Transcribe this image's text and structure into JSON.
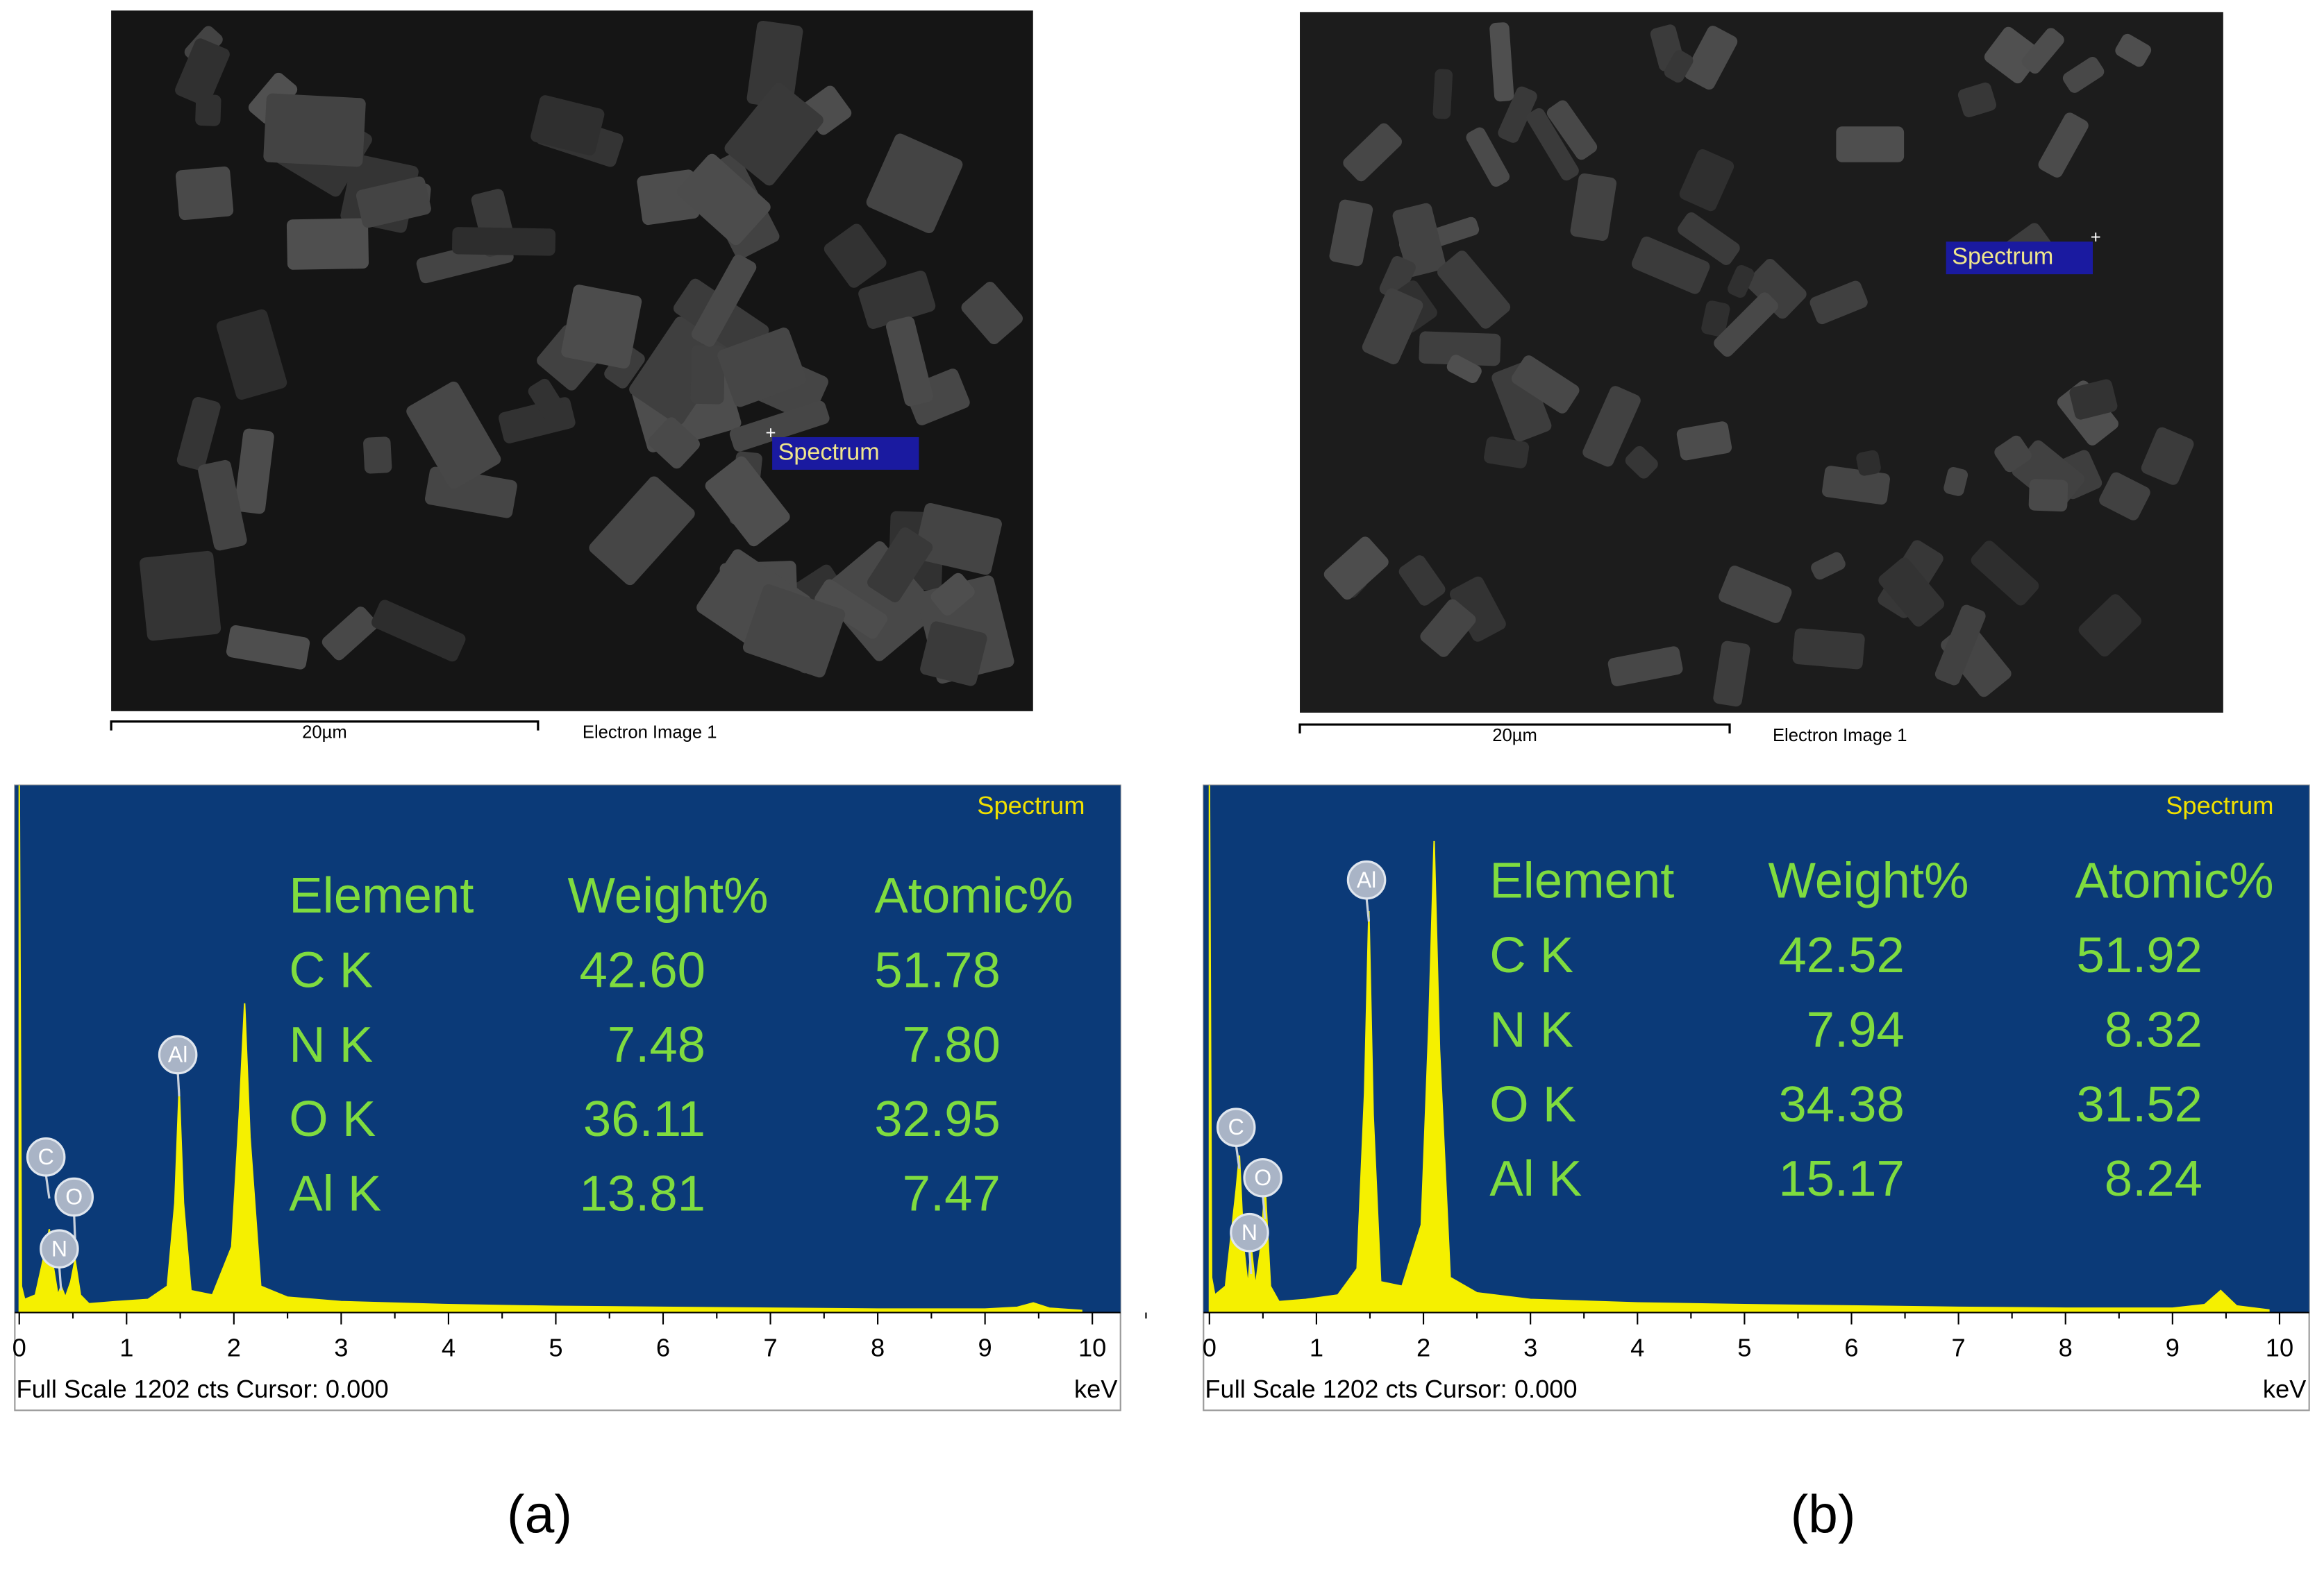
{
  "panels": [
    {
      "label": "(a)",
      "image": {
        "scale_bar": "20µm",
        "caption": "Electron Image 1",
        "marker": "Spectrum"
      },
      "spectrum": {
        "title": "Spectrum",
        "footer": "Full Scale 1202 cts Cursor: 0.000",
        "unit": "keV",
        "xlim": [
          0,
          10
        ],
        "ylim": [
          0,
          1202
        ],
        "xticks": [
          0,
          1,
          2,
          3,
          4,
          5,
          6,
          7,
          8,
          9,
          10
        ],
        "x": [
          0,
          0.02,
          0.05,
          0.15,
          0.25,
          0.28,
          0.32,
          0.36,
          0.39,
          0.43,
          0.48,
          0.52,
          0.57,
          0.65,
          0.9,
          1.2,
          1.38,
          1.45,
          1.49,
          1.53,
          1.6,
          1.8,
          1.98,
          2.05,
          2.1,
          2.15,
          2.25,
          2.5,
          3,
          4,
          5,
          6,
          7,
          8,
          9,
          9.3,
          9.45,
          9.6,
          9.9
        ],
        "values": [
          1202,
          60,
          30,
          40,
          150,
          190,
          100,
          40,
          60,
          35,
          70,
          120,
          40,
          20,
          25,
          30,
          60,
          250,
          510,
          250,
          50,
          40,
          150,
          450,
          705,
          400,
          60,
          35,
          25,
          18,
          14,
          12,
          10,
          8,
          8,
          12,
          22,
          10,
          5
        ],
        "peak_labels": [
          "C",
          "O",
          "N",
          "Al"
        ]
      },
      "table": {
        "header": [
          "Element",
          "Weight%",
          "Atomic%"
        ],
        "rows": [
          [
            "C K",
            "42.60",
            "51.78"
          ],
          [
            "N K",
            "7.48",
            "7.80"
          ],
          [
            "O K",
            "36.11",
            "32.95"
          ],
          [
            "Al K",
            "13.81",
            "7.47"
          ]
        ]
      }
    },
    {
      "label": "(b)",
      "image": {
        "scale_bar": "20µm",
        "caption": "Electron Image 1",
        "marker": "Spectrum"
      },
      "spectrum": {
        "title": "Spectrum",
        "footer": "Full Scale 1202 cts Cursor: 0.000",
        "unit": "keV",
        "xlim": [
          0,
          10
        ],
        "ylim": [
          0,
          1202
        ],
        "xticks": [
          0,
          1,
          2,
          3,
          4,
          5,
          6,
          7,
          8,
          9,
          10
        ],
        "x": [
          0,
          0.02,
          0.05,
          0.15,
          0.25,
          0.28,
          0.32,
          0.36,
          0.39,
          0.43,
          0.48,
          0.52,
          0.57,
          0.65,
          0.9,
          1.2,
          1.38,
          1.45,
          1.49,
          1.53,
          1.6,
          1.8,
          1.98,
          2.05,
          2.1,
          2.15,
          2.25,
          2.5,
          3,
          4,
          5,
          6,
          7,
          8,
          9,
          9.3,
          9.45,
          9.6,
          9.9
        ],
        "values": [
          1202,
          80,
          40,
          60,
          280,
          358,
          150,
          60,
          150,
          60,
          150,
          290,
          60,
          25,
          30,
          40,
          100,
          500,
          915,
          450,
          70,
          60,
          200,
          650,
          1075,
          600,
          80,
          45,
          30,
          22,
          18,
          15,
          12,
          10,
          10,
          18,
          50,
          15,
          6
        ],
        "peak_labels": [
          "C",
          "O",
          "N",
          "Al"
        ]
      },
      "table": {
        "header": [
          "Element",
          "Weight%",
          "Atomic%"
        ],
        "rows": [
          [
            "C K",
            "42.52",
            "51.92"
          ],
          [
            "N K",
            "7.94",
            "8.32"
          ],
          [
            "O K",
            "34.38",
            "31.52"
          ],
          [
            "Al K",
            "15.17",
            "8.24"
          ]
        ]
      }
    }
  ]
}
